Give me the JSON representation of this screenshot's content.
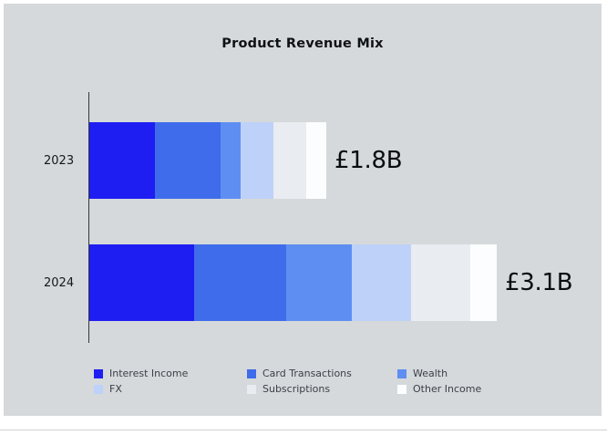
{
  "chart_data": {
    "type": "bar",
    "orientation": "horizontal",
    "stacked": true,
    "title": "Product Revenue Mix",
    "categories": [
      "2023",
      "2024"
    ],
    "series": [
      {
        "name": "Interest Income",
        "color": "#1e1ef2",
        "values": [
          0.5,
          0.8
        ]
      },
      {
        "name": "Card Transactions",
        "color": "#3f6ceb",
        "values": [
          0.5,
          0.7
        ]
      },
      {
        "name": "Wealth",
        "color": "#5f8ef2",
        "values": [
          0.15,
          0.5
        ]
      },
      {
        "name": "FX",
        "color": "#bed1f9",
        "values": [
          0.25,
          0.45
        ]
      },
      {
        "name": "Subscriptions",
        "color": "#e9ecf0",
        "values": [
          0.25,
          0.45
        ]
      },
      {
        "name": "Other Income",
        "color": "#fcfdfe",
        "values": [
          0.15,
          0.2
        ]
      }
    ],
    "totals": [
      "£1.8B",
      "£3.1B"
    ],
    "xlim": [
      0,
      3.5
    ],
    "currency": "£",
    "legend_position": "bottom",
    "background_color": "#d5d9db",
    "grid": false
  }
}
